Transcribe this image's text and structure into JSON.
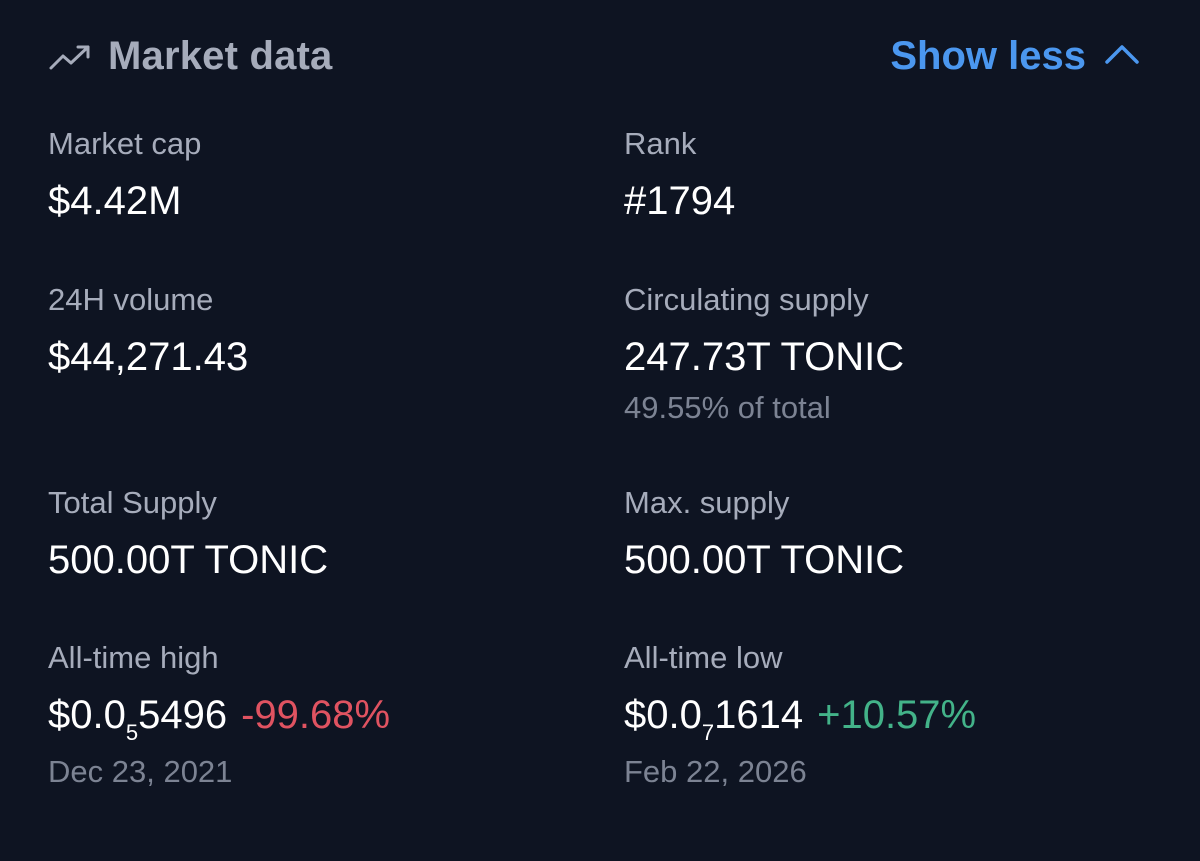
{
  "header": {
    "title": "Market data",
    "toggle_label": "Show less",
    "icon": "trending-up-icon",
    "toggle_icon": "chevron-up-icon"
  },
  "stats": {
    "market_cap": {
      "label": "Market cap",
      "value": "$4.42M"
    },
    "rank": {
      "label": "Rank",
      "value": "#1794"
    },
    "volume_24h": {
      "label": "24H volume",
      "value": "$44,271.43"
    },
    "circulating_supply": {
      "label": "Circulating supply",
      "value": "247.73T TONIC",
      "sub": "49.55% of total"
    },
    "total_supply": {
      "label": "Total Supply",
      "value": "500.00T TONIC"
    },
    "max_supply": {
      "label": "Max. supply",
      "value": "500.00T TONIC"
    },
    "all_time_high": {
      "label": "All-time high",
      "price_prefix": "$0.0",
      "price_zeros": "5",
      "price_digits": "5496",
      "change": "-99.68%",
      "date": "Dec 23, 2021"
    },
    "all_time_low": {
      "label": "All-time low",
      "price_prefix": "$0.0",
      "price_zeros": "7",
      "price_digits": "1614",
      "change": "+10.57%",
      "date": "Feb 22, 2026"
    }
  },
  "colors": {
    "background": "#0e1422",
    "label": "#a6acbb",
    "value": "#ffffff",
    "muted": "#7c8393",
    "accent": "#4b97ef",
    "negative": "#e05361",
    "positive": "#43b389"
  }
}
